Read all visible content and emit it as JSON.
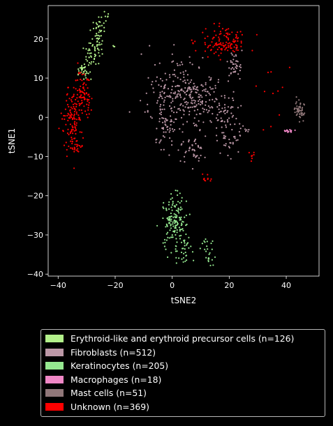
{
  "chart_data": {
    "type": "scatter",
    "title": "",
    "xlabel": "tSNE2",
    "ylabel": "tSNE1",
    "xlim": [
      -43.5,
      51.5
    ],
    "ylim": [
      -40.5,
      28.5
    ],
    "xticks": [
      -40,
      -20,
      0,
      20,
      40
    ],
    "yticks": [
      20,
      10,
      0,
      -10,
      -20,
      -30,
      -40
    ],
    "xtick_labels": [
      "−40",
      "−20",
      "0",
      "20",
      "40"
    ],
    "ytick_labels": [
      "20",
      "10",
      "0",
      "−10",
      "−20",
      "−30",
      "−40"
    ],
    "grid": false,
    "legend_position": "below",
    "series": [
      {
        "name": "Erythroid-like and erythroid precursor cells (n=126)",
        "color": "#b2f08a",
        "clusters": [
          {
            "cx": -27,
            "cy": 19,
            "sx": 1.4,
            "sy": 4.5,
            "n": 100,
            "tilt": 0.35
          },
          {
            "cx": -20.5,
            "cy": 18,
            "sx": 0.2,
            "sy": 0.2,
            "n": 3,
            "tilt": 0
          },
          {
            "cx": -31.5,
            "cy": 12,
            "sx": 1.0,
            "sy": 0.6,
            "n": 23,
            "tilt": 0
          }
        ]
      },
      {
        "name": "Fibroblasts (n=512)",
        "color": "#bc98a7",
        "clusters": [
          {
            "cx": 2,
            "cy": 6,
            "sx": 5,
            "sy": 4.5,
            "n": 200,
            "tilt": 0
          },
          {
            "cx": 10,
            "cy": 4,
            "sx": 4,
            "sy": 3.5,
            "n": 90,
            "tilt": 0
          },
          {
            "cx": 18,
            "cy": 2,
            "sx": 2.5,
            "sy": 3,
            "n": 50,
            "tilt": 0
          },
          {
            "cx": 21,
            "cy": -5,
            "sx": 2,
            "sy": 2.5,
            "n": 35,
            "tilt": 0
          },
          {
            "cx": 7,
            "cy": -8.5,
            "sx": 2,
            "sy": 2,
            "n": 45,
            "tilt": 0
          },
          {
            "cx": 22,
            "cy": 13,
            "sx": 1.2,
            "sy": 2,
            "n": 40,
            "tilt": 0
          },
          {
            "cx": -3,
            "cy": -2,
            "sx": 2.5,
            "sy": 3,
            "n": 40,
            "tilt": 0
          },
          {
            "cx": -5,
            "cy": -6,
            "sx": 0.8,
            "sy": 0.5,
            "n": 6,
            "tilt": 0
          },
          {
            "cx": 25,
            "cy": -3,
            "sx": 1.5,
            "sy": 0.4,
            "n": 6,
            "tilt": 0
          }
        ]
      },
      {
        "name": "Keratinocytes (n=205)",
        "color": "#95e890",
        "clusters": [
          {
            "cx": 1,
            "cy": -27,
            "sx": 2.2,
            "sy": 3.5,
            "n": 150,
            "tilt": 0
          },
          {
            "cx": 4,
            "cy": -34,
            "sx": 1.8,
            "sy": 1.5,
            "n": 30,
            "tilt": 0
          },
          {
            "cx": 12.5,
            "cy": -33,
            "sx": 1.2,
            "sy": 1,
            "n": 15,
            "tilt": 0
          },
          {
            "cx": 13,
            "cy": -36.5,
            "sx": 1,
            "sy": 0.6,
            "n": 10,
            "tilt": 0
          }
        ]
      },
      {
        "name": "Macrophages (n=18)",
        "color": "#f087c6",
        "clusters": [
          {
            "cx": 40.5,
            "cy": -3.5,
            "sx": 1.2,
            "sy": 0.25,
            "n": 18,
            "tilt": 0
          }
        ]
      },
      {
        "name": "Mast cells (n=51)",
        "color": "#907779",
        "clusters": [
          {
            "cx": 44.5,
            "cy": 2,
            "sx": 1.0,
            "sy": 1.4,
            "n": 51,
            "tilt": 0
          }
        ]
      },
      {
        "name": "Unknown (n=369)",
        "color": "#ff0000",
        "clusters": [
          {
            "cx": -35,
            "cy": -1,
            "sx": 1.5,
            "sy": 4,
            "n": 110,
            "tilt": 0
          },
          {
            "cx": -31.5,
            "cy": 6,
            "sx": 1.5,
            "sy": 3,
            "n": 90,
            "tilt": 0
          },
          {
            "cx": -34,
            "cy": -7,
            "sx": 1,
            "sy": 1,
            "n": 20,
            "tilt": 0
          },
          {
            "cx": 18,
            "cy": 19,
            "sx": 4.5,
            "sy": 1.8,
            "n": 120,
            "tilt": 0
          },
          {
            "cx": 11.5,
            "cy": -15.5,
            "sx": 0.8,
            "sy": 0.6,
            "n": 10,
            "tilt": 0
          },
          {
            "cx": 28,
            "cy": -10,
            "sx": 0.4,
            "sy": 0.9,
            "n": 8,
            "tilt": 0
          },
          {
            "cx": 35,
            "cy": 10,
            "sx": 5,
            "sy": 5,
            "n": 11,
            "tilt": 0
          }
        ]
      }
    ]
  }
}
